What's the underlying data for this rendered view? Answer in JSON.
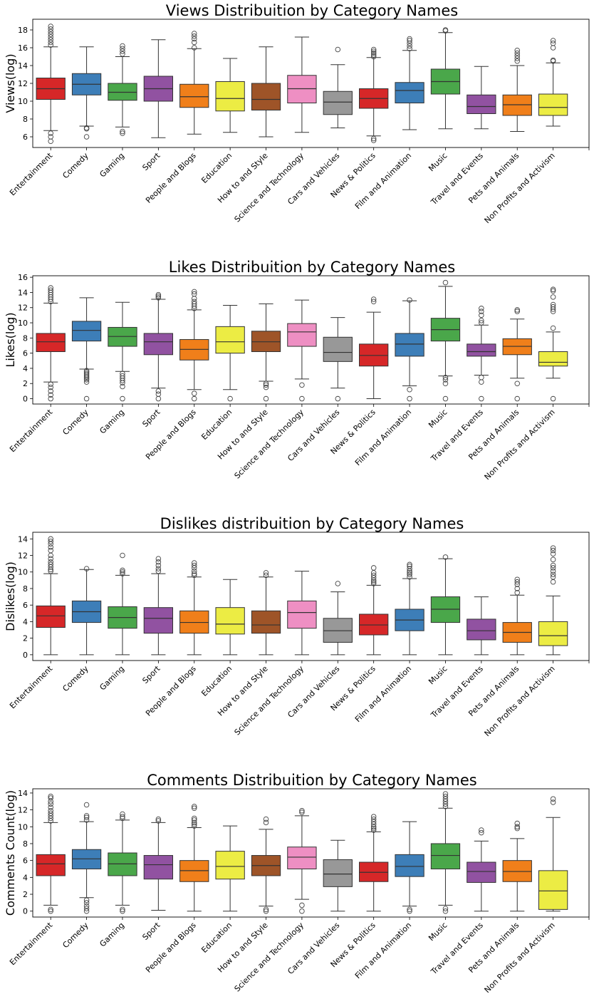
{
  "colors": {
    "palette": [
      "#d62728",
      "#3d7eb8",
      "#4aa74a",
      "#9152a1",
      "#f07f1a",
      "#ecec44",
      "#9e5428",
      "#ee8fc3",
      "#989898"
    ],
    "box_edge": "#333333",
    "outlier": "#444444"
  },
  "chart_data": [
    {
      "type": "box",
      "title": "Views Distribuition by Category Names",
      "ylabel": "Views(log)",
      "ylim": [
        4.8,
        19.2
      ],
      "yticks": [
        6,
        8,
        10,
        12,
        14,
        16,
        18
      ],
      "categories": [
        "Entertainment",
        "Comedy",
        "Gaming",
        "Sport",
        "People and Blogs",
        "Education",
        "How to and Style",
        "Science and Technology",
        "Cars and Vehicles",
        "News & Politics",
        "Film and Animation",
        "Music",
        "Travel and Events",
        "Pets and Animals",
        "Non Profits and Activism"
      ],
      "boxes": [
        {
          "q1": 10.2,
          "median": 11.4,
          "q3": 12.6,
          "whislo": 6.7,
          "whishi": 16.1,
          "fliers": [
            6.4,
            6.0,
            5.5,
            16.3,
            16.6,
            16.9,
            17.2,
            17.5,
            17.8,
            18.1,
            18.4
          ]
        },
        {
          "q1": 10.7,
          "median": 11.9,
          "q3": 13.1,
          "whislo": 7.2,
          "whishi": 16.1,
          "fliers": [
            7.0,
            6.9,
            6.0
          ]
        },
        {
          "q1": 10.1,
          "median": 11.0,
          "q3": 12.0,
          "whislo": 7.1,
          "whishi": 15.0,
          "fliers": [
            6.6,
            6.4,
            15.3,
            15.6,
            15.9,
            16.2
          ]
        },
        {
          "q1": 10.0,
          "median": 11.4,
          "q3": 12.8,
          "whislo": 5.9,
          "whishi": 16.9,
          "fliers": []
        },
        {
          "q1": 9.3,
          "median": 10.5,
          "q3": 11.9,
          "whislo": 6.3,
          "whishi": 15.9,
          "fliers": [
            16.0,
            16.6,
            17.0,
            17.3,
            17.6
          ]
        },
        {
          "q1": 8.9,
          "median": 10.3,
          "q3": 12.2,
          "whislo": 6.5,
          "whishi": 14.8,
          "fliers": []
        },
        {
          "q1": 9.0,
          "median": 10.2,
          "q3": 12.0,
          "whislo": 6.0,
          "whishi": 16.1,
          "fliers": []
        },
        {
          "q1": 9.8,
          "median": 11.4,
          "q3": 12.9,
          "whislo": 6.5,
          "whishi": 17.2,
          "fliers": []
        },
        {
          "q1": 8.5,
          "median": 9.9,
          "q3": 11.1,
          "whislo": 7.0,
          "whishi": 14.1,
          "fliers": [
            15.8
          ]
        },
        {
          "q1": 9.2,
          "median": 10.3,
          "q3": 11.4,
          "whislo": 6.1,
          "whishi": 14.9,
          "fliers": [
            5.8,
            5.6,
            15.0,
            15.2,
            15.4,
            15.6,
            15.8
          ]
        },
        {
          "q1": 9.8,
          "median": 11.2,
          "q3": 12.1,
          "whislo": 6.8,
          "whishi": 15.7,
          "fliers": [
            15.9,
            16.2,
            16.5,
            16.8,
            17.0
          ]
        },
        {
          "q1": 10.8,
          "median": 12.2,
          "q3": 13.6,
          "whislo": 6.9,
          "whishi": 17.7,
          "fliers": [
            17.9,
            18.0
          ]
        },
        {
          "q1": 8.6,
          "median": 9.4,
          "q3": 10.7,
          "whislo": 6.9,
          "whishi": 13.9,
          "fliers": []
        },
        {
          "q1": 8.4,
          "median": 9.6,
          "q3": 10.7,
          "whislo": 6.6,
          "whishi": 14.0,
          "fliers": [
            14.5,
            14.8,
            15.1,
            15.4,
            15.7
          ]
        },
        {
          "q1": 8.4,
          "median": 9.3,
          "q3": 10.8,
          "whislo": 7.2,
          "whishi": 14.3,
          "fliers": [
            14.5,
            14.6,
            16.0,
            16.5,
            16.8
          ]
        }
      ]
    },
    {
      "type": "box",
      "title": "Likes Distribuition by Category Names",
      "ylabel": "Likes(log)",
      "ylim": [
        -0.7,
        16.2
      ],
      "yticks": [
        0,
        2,
        4,
        6,
        8,
        10,
        12,
        14,
        16
      ],
      "categories": [
        "Entertainment",
        "Comedy",
        "Gaming",
        "Sport",
        "People and Blogs",
        "Education",
        "How to and Style",
        "Science and Technology",
        "Cars and Vehicles",
        "News & Politics",
        "Film and Animation",
        "Music",
        "Travel and Events",
        "Pets and Animals",
        "Non Profits and Activism"
      ],
      "boxes": [
        {
          "q1": 6.2,
          "median": 7.5,
          "q3": 8.6,
          "whislo": 2.2,
          "whishi": 12.6,
          "fliers": [
            1.9,
            1.5,
            1.0,
            0.5,
            0.0,
            12.8,
            13.1,
            13.4,
            13.7,
            14.0,
            14.3,
            14.6
          ]
        },
        {
          "q1": 7.6,
          "median": 9.0,
          "q3": 10.2,
          "whislo": 3.9,
          "whishi": 13.3,
          "fliers": [
            3.7,
            3.5,
            3.3,
            3.1,
            2.9,
            2.7,
            2.5,
            2.2,
            0.0
          ]
        },
        {
          "q1": 6.9,
          "median": 8.2,
          "q3": 9.4,
          "whislo": 3.6,
          "whishi": 12.7,
          "fliers": [
            3.3,
            3.0,
            2.7,
            2.4,
            2.1,
            1.6,
            0.0
          ]
        },
        {
          "q1": 5.8,
          "median": 7.5,
          "q3": 8.6,
          "whislo": 1.4,
          "whishi": 13.1,
          "fliers": [
            1.0,
            0.6,
            0.0,
            13.3,
            13.5,
            13.7
          ]
        },
        {
          "q1": 5.1,
          "median": 6.5,
          "q3": 7.8,
          "whislo": 1.2,
          "whishi": 11.7,
          "fliers": [
            0.7,
            0.0,
            11.9,
            12.2,
            12.5,
            12.8,
            13.2,
            13.8,
            14.1
          ]
        },
        {
          "q1": 6.0,
          "median": 7.5,
          "q3": 9.5,
          "whislo": 1.2,
          "whishi": 12.3,
          "fliers": [
            0.0
          ]
        },
        {
          "q1": 6.2,
          "median": 7.5,
          "q3": 8.9,
          "whislo": 2.3,
          "whishi": 12.5,
          "fliers": [
            2.0,
            1.8,
            1.5,
            0.0
          ]
        },
        {
          "q1": 6.9,
          "median": 8.8,
          "q3": 9.9,
          "whislo": 2.6,
          "whishi": 13.0,
          "fliers": [
            1.8,
            0.0
          ]
        },
        {
          "q1": 4.9,
          "median": 6.1,
          "q3": 8.1,
          "whislo": 1.4,
          "whishi": 10.7,
          "fliers": [
            0.0
          ]
        },
        {
          "q1": 4.3,
          "median": 5.7,
          "q3": 7.2,
          "whislo": 0.0,
          "whishi": 11.4,
          "fliers": [
            12.8,
            13.1
          ]
        },
        {
          "q1": 5.6,
          "median": 7.2,
          "q3": 8.6,
          "whislo": 1.7,
          "whishi": 12.9,
          "fliers": [
            1.2,
            0.0,
            13.0
          ]
        },
        {
          "q1": 7.6,
          "median": 9.1,
          "q3": 10.6,
          "whislo": 3.0,
          "whishi": 14.8,
          "fliers": [
            2.8,
            2.5,
            2.0,
            0.0,
            15.3
          ]
        },
        {
          "q1": 5.6,
          "median": 6.2,
          "q3": 7.2,
          "whislo": 3.1,
          "whishi": 9.7,
          "fliers": [
            2.8,
            2.2,
            0.0,
            10.0,
            10.3,
            11.0,
            11.5,
            11.9
          ]
        },
        {
          "q1": 5.8,
          "median": 6.9,
          "q3": 7.9,
          "whislo": 2.7,
          "whishi": 10.5,
          "fliers": [
            2.0,
            0.0,
            11.5,
            11.7
          ]
        },
        {
          "q1": 4.3,
          "median": 4.8,
          "q3": 6.2,
          "whislo": 2.7,
          "whishi": 8.8,
          "fliers": [
            0.0,
            9.3,
            11.5,
            11.8,
            12.1,
            12.4,
            13.4,
            14.2,
            14.4
          ]
        }
      ]
    },
    {
      "type": "box",
      "title": "Dislikes distribuition by Category Names",
      "ylabel": "Dislikes(log)",
      "ylim": [
        -0.7,
        14.8
      ],
      "yticks": [
        0,
        2,
        4,
        6,
        8,
        10,
        12,
        14
      ],
      "categories": [
        "Entertainment",
        "Comedy",
        "Gaming",
        "Sport",
        "People and Blogs",
        "Education",
        "How to and Style",
        "Science and Technology",
        "Cars and Vehicles",
        "News & Politics",
        "Film and Animation",
        "Music",
        "Travel and Events",
        "Pets and Animals",
        "Non Profits and Activism"
      ],
      "boxes": [
        {
          "q1": 3.3,
          "median": 4.7,
          "q3": 5.9,
          "whislo": 0.0,
          "whishi": 9.8,
          "fliers": [
            10.1,
            10.3,
            10.6,
            10.9,
            11.2,
            11.6,
            12.0,
            12.6,
            13.0,
            13.4,
            13.7,
            14.0
          ]
        },
        {
          "q1": 3.9,
          "median": 5.2,
          "q3": 6.5,
          "whislo": 0.0,
          "whishi": 10.3,
          "fliers": [
            10.4
          ]
        },
        {
          "q1": 3.2,
          "median": 4.5,
          "q3": 5.8,
          "whislo": 0.0,
          "whishi": 9.6,
          "fliers": [
            9.8,
            10.0,
            10.2,
            12.0
          ]
        },
        {
          "q1": 2.6,
          "median": 4.4,
          "q3": 5.7,
          "whislo": 0.0,
          "whishi": 9.8,
          "fliers": [
            10.1,
            10.4,
            10.8,
            11.2,
            11.6
          ]
        },
        {
          "q1": 2.6,
          "median": 3.9,
          "q3": 5.3,
          "whislo": 0.0,
          "whishi": 9.4,
          "fliers": [
            9.6,
            9.8,
            10.1,
            10.5,
            10.8,
            11.1
          ]
        },
        {
          "q1": 2.5,
          "median": 3.7,
          "q3": 5.7,
          "whislo": 0.0,
          "whishi": 9.1,
          "fliers": []
        },
        {
          "q1": 2.6,
          "median": 3.6,
          "q3": 5.3,
          "whislo": 0.0,
          "whishi": 9.4,
          "fliers": [
            9.6,
            9.9
          ]
        },
        {
          "q1": 3.2,
          "median": 5.1,
          "q3": 6.5,
          "whislo": 0.0,
          "whishi": 10.1,
          "fliers": []
        },
        {
          "q1": 1.5,
          "median": 2.9,
          "q3": 4.4,
          "whislo": 0.0,
          "whishi": 7.6,
          "fliers": [
            8.6
          ]
        },
        {
          "q1": 2.4,
          "median": 3.6,
          "q3": 4.9,
          "whislo": 0.0,
          "whishi": 8.4,
          "fliers": [
            8.6,
            8.8,
            9.0,
            9.3,
            9.6,
            9.9,
            10.5
          ]
        },
        {
          "q1": 2.9,
          "median": 4.2,
          "q3": 5.5,
          "whislo": 0.0,
          "whishi": 9.2,
          "fliers": [
            9.4,
            9.7,
            9.9,
            10.1,
            10.4,
            10.7,
            10.9
          ]
        },
        {
          "q1": 3.9,
          "median": 5.5,
          "q3": 7.0,
          "whislo": 0.0,
          "whishi": 11.6,
          "fliers": [
            11.8
          ]
        },
        {
          "q1": 1.8,
          "median": 2.9,
          "q3": 4.3,
          "whislo": 0.0,
          "whishi": 7.0,
          "fliers": []
        },
        {
          "q1": 1.5,
          "median": 2.7,
          "q3": 3.9,
          "whislo": 0.0,
          "whishi": 7.2,
          "fliers": [
            7.5,
            8.0,
            8.5,
            8.8,
            9.1
          ]
        },
        {
          "q1": 1.1,
          "median": 2.3,
          "q3": 4.0,
          "whislo": 0.0,
          "whishi": 7.1,
          "fliers": [
            8.8,
            9.4,
            9.7,
            10.1,
            10.5,
            10.8,
            11.5,
            12.2,
            12.6,
            12.9
          ]
        }
      ]
    },
    {
      "type": "box",
      "title": "Comments Distribuition by Category Names",
      "ylabel": "Comments Count(log)",
      "ylim": [
        -0.7,
        14.5
      ],
      "yticks": [
        0,
        2,
        4,
        6,
        8,
        10,
        12,
        14
      ],
      "categories": [
        "Entertainment",
        "Comedy",
        "Gaming",
        "Sport",
        "People and Blogs",
        "Education",
        "How to and Style",
        "Science and Technology",
        "Cars and Vehicles",
        "News & Politics",
        "Film and Animation",
        "Music",
        "Travel and Events",
        "Pets and Animals",
        "Non Profits and Activism"
      ],
      "boxes": [
        {
          "q1": 4.2,
          "median": 5.6,
          "q3": 6.7,
          "whislo": 0.7,
          "whishi": 10.5,
          "fliers": [
            0.2,
            0.0,
            10.7,
            11.0,
            11.3,
            11.6,
            11.9,
            12.3,
            12.7,
            13.0,
            13.4,
            13.6
          ]
        },
        {
          "q1": 5.0,
          "median": 6.2,
          "q3": 7.3,
          "whislo": 1.6,
          "whishi": 10.6,
          "fliers": [
            1.3,
            1.0,
            0.6,
            0.3,
            0.0,
            10.8,
            11.1,
            11.3,
            12.6
          ]
        },
        {
          "q1": 4.2,
          "median": 5.6,
          "q3": 6.9,
          "whislo": 0.7,
          "whishi": 10.8,
          "fliers": [
            0.2,
            0.0,
            11.0,
            11.2,
            11.5
          ]
        },
        {
          "q1": 3.8,
          "median": 5.5,
          "q3": 6.6,
          "whislo": 0.1,
          "whishi": 10.5,
          "fliers": [
            10.7,
            10.9
          ]
        },
        {
          "q1": 3.5,
          "median": 4.8,
          "q3": 6.0,
          "whislo": 0.0,
          "whishi": 9.9,
          "fliers": [
            10.1,
            10.3,
            10.5,
            10.8,
            11.0,
            12.2,
            12.4
          ]
        },
        {
          "q1": 3.8,
          "median": 5.3,
          "q3": 7.1,
          "whislo": 0.0,
          "whishi": 10.1,
          "fliers": []
        },
        {
          "q1": 4.2,
          "median": 5.4,
          "q3": 6.6,
          "whislo": 0.6,
          "whishi": 9.7,
          "fliers": [
            0.2,
            0.0,
            10.5,
            10.9
          ]
        },
        {
          "q1": 5.0,
          "median": 6.4,
          "q3": 7.6,
          "whislo": 1.4,
          "whishi": 11.3,
          "fliers": [
            0.7,
            0.0,
            11.7,
            11.9
          ]
        },
        {
          "q1": 2.9,
          "median": 4.4,
          "q3": 6.1,
          "whislo": 0.0,
          "whishi": 8.4,
          "fliers": []
        },
        {
          "q1": 3.5,
          "median": 4.6,
          "q3": 5.8,
          "whislo": 0.0,
          "whishi": 9.4,
          "fliers": [
            9.6,
            9.8,
            10.0,
            10.3,
            10.6,
            10.9,
            11.2
          ]
        },
        {
          "q1": 4.1,
          "median": 5.3,
          "q3": 6.7,
          "whislo": 0.6,
          "whishi": 10.6,
          "fliers": [
            0.2,
            0.0
          ]
        },
        {
          "q1": 5.0,
          "median": 6.6,
          "q3": 8.0,
          "whislo": 0.7,
          "whishi": 12.2,
          "fliers": [
            0.3,
            0.0,
            12.4,
            12.7,
            13.0,
            13.3,
            13.6,
            13.9
          ]
        },
        {
          "q1": 3.4,
          "median": 4.7,
          "q3": 5.8,
          "whislo": 0.0,
          "whishi": 8.3,
          "fliers": [
            9.3,
            9.6
          ]
        },
        {
          "q1": 3.5,
          "median": 4.7,
          "q3": 6.0,
          "whislo": 0.0,
          "whishi": 8.6,
          "fliers": [
            9.8,
            10.0,
            10.4
          ]
        },
        {
          "q1": 0.2,
          "median": 2.4,
          "q3": 4.8,
          "whislo": 0.0,
          "whishi": 11.1,
          "fliers": [
            12.9,
            13.3
          ]
        }
      ]
    }
  ]
}
